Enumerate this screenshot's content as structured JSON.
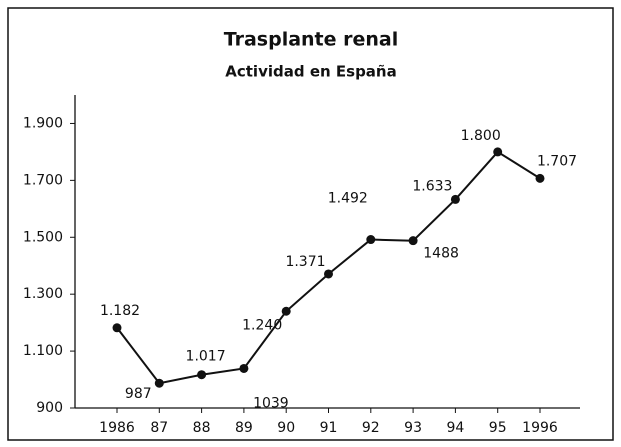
{
  "chart_data": {
    "type": "line",
    "title": "Trasplante renal",
    "subtitle": "Actividad en España",
    "categories": [
      "1986",
      "87",
      "88",
      "89",
      "90",
      "91",
      "92",
      "93",
      "94",
      "95",
      "1996"
    ],
    "values": [
      1182,
      987,
      1017,
      1039,
      1240,
      1371,
      1492,
      1488,
      1633,
      1800,
      1707
    ],
    "value_labels": [
      "1.182",
      "987",
      "1.017",
      "1039",
      "1.240",
      "1.371",
      "1.492",
      "1488",
      "1.633",
      "1.800",
      "1.707"
    ],
    "color": "#111111",
    "ylim": [
      900,
      2000
    ],
    "yticks": [
      900,
      {
        "value": 1100,
        "label": "1.100"
      },
      {
        "value": 1300,
        "label": "1.300"
      },
      {
        "value": 1500,
        "label": "1.500"
      },
      {
        "value": 1700,
        "label": "1.700"
      },
      {
        "value": 1900,
        "label": "1.900"
      }
    ],
    "grid": false
  }
}
